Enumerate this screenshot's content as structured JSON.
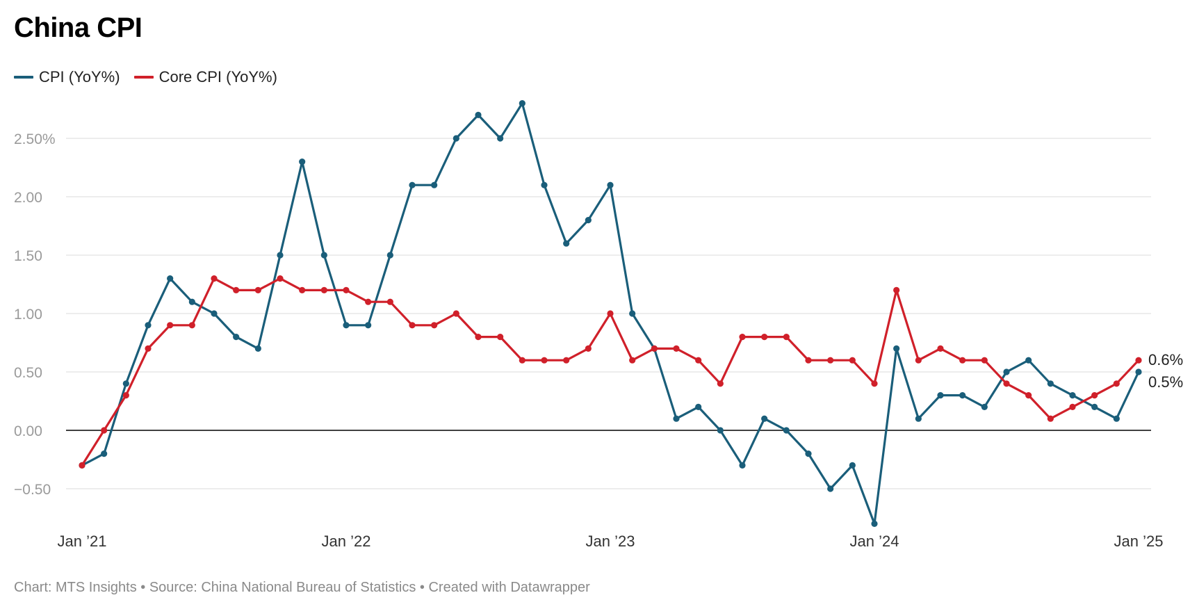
{
  "title": "China CPI",
  "footer": "Chart: MTS Insights • Source: China National Bureau of Statistics • Created with Datawrapper",
  "chart_data": {
    "type": "line",
    "title": "China CPI",
    "x_tick_labels": [
      "Jan ’21",
      "Jan ’22",
      "Jan ’23",
      "Jan ’24",
      "Jan ’25"
    ],
    "y_tick_labels": [
      "−0.50",
      "0.00",
      "0.50",
      "1.00",
      "1.50",
      "2.00",
      "2.50%"
    ],
    "y_ticks": [
      -0.5,
      0,
      0.5,
      1.0,
      1.5,
      2.0,
      2.5
    ],
    "ylim": [
      -0.85,
      2.9
    ],
    "x_start": "2021-01",
    "x_end": "2025-01",
    "grid": true,
    "legend_position": "top-left",
    "series": [
      {
        "name": "CPI (YoY%)",
        "color": "#1a5e7a",
        "end_label": "0.5%",
        "values": [
          -0.3,
          -0.2,
          0.4,
          0.9,
          1.3,
          1.1,
          1.0,
          0.8,
          0.7,
          1.5,
          2.3,
          1.5,
          0.9,
          0.9,
          1.5,
          2.1,
          2.1,
          2.5,
          2.7,
          2.5,
          2.8,
          2.1,
          1.6,
          1.8,
          2.1,
          1.0,
          0.7,
          0.1,
          0.2,
          0.0,
          -0.3,
          0.1,
          0.0,
          -0.2,
          -0.5,
          -0.3,
          -0.8,
          0.7,
          0.1,
          0.3,
          0.3,
          0.2,
          0.5,
          0.6,
          0.4,
          0.3,
          0.2,
          0.1,
          0.5
        ]
      },
      {
        "name": "Core CPI (YoY%)",
        "color": "#d0202a",
        "end_label": "0.6%",
        "values": [
          -0.3,
          0.0,
          0.3,
          0.7,
          0.9,
          0.9,
          1.3,
          1.2,
          1.2,
          1.3,
          1.2,
          1.2,
          1.2,
          1.1,
          1.1,
          0.9,
          0.9,
          1.0,
          0.8,
          0.8,
          0.6,
          0.6,
          0.6,
          0.7,
          1.0,
          0.6,
          0.7,
          0.7,
          0.6,
          0.4,
          0.8,
          0.8,
          0.8,
          0.6,
          0.6,
          0.6,
          0.4,
          1.2,
          0.6,
          0.7,
          0.6,
          0.6,
          0.4,
          0.3,
          0.1,
          0.2,
          0.3,
          0.4,
          0.6
        ]
      }
    ]
  }
}
